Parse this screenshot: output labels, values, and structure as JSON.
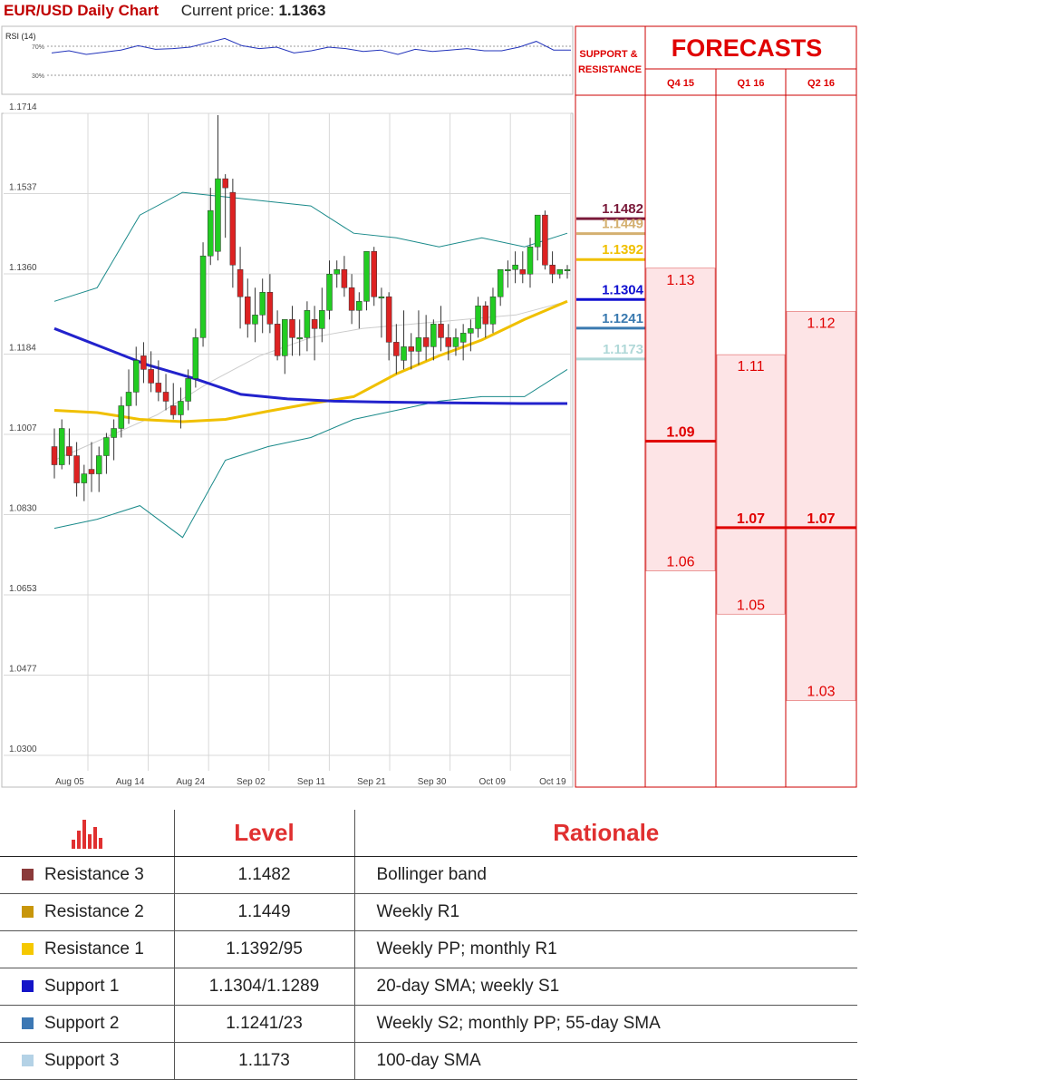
{
  "header": {
    "title": "EUR/USD Daily Chart",
    "price_label": "Current price:",
    "price_value": "1.1363"
  },
  "rsi": {
    "label": "RSI (14)",
    "upper": "70%",
    "lower": "30%"
  },
  "panel": {
    "sr_title": "SUPPORT & RESISTANCE",
    "fc_title": "FORECASTS"
  },
  "colors": {
    "resistance3": "#7a1a3a",
    "resistance2": "#d4b070",
    "resistance1": "#f0c000",
    "support1": "#1010d0",
    "support2": "#3a7ab0",
    "support3": "#b0d8d8",
    "forecast": "#e00000",
    "bull": "#22cc22",
    "bear": "#dd2222",
    "sma_blue": "#2222cc",
    "sma_yellow": "#f0c000",
    "bollinger": "#1a8a8a"
  },
  "sr_levels": [
    {
      "label": "1.1482",
      "value": 1.1482,
      "color": "#7a1a3a"
    },
    {
      "label": "1.1449",
      "value": 1.1449,
      "color": "#d4b070"
    },
    {
      "label": "1.1392",
      "value": 1.1392,
      "color": "#f0c000"
    },
    {
      "label": "1.1304",
      "value": 1.1304,
      "color": "#1010d0"
    },
    {
      "label": "1.1241",
      "value": 1.1241,
      "color": "#3a7ab0"
    },
    {
      "label": "1.1173",
      "value": 1.1173,
      "color": "#b0d8d8"
    }
  ],
  "chart_data": [
    {
      "type": "candlestick",
      "title": "EUR/USD Daily Chart",
      "y_ticks": [
        "1.1714",
        "1.1537",
        "1.1360",
        "1.1184",
        "1.1007",
        "1.0830",
        "1.0653",
        "1.0477",
        "1.0300"
      ],
      "ylim": [
        1.03,
        1.1714
      ],
      "x_ticks": [
        "Aug 05",
        "Aug 14",
        "Aug 24",
        "Sep 02",
        "Sep 11",
        "Sep 21",
        "Sep 30",
        "Oct 09",
        "Oct 19"
      ],
      "grid": true,
      "candles": [
        [
          1.098,
          1.102,
          1.091,
          1.094
        ],
        [
          1.094,
          1.104,
          1.093,
          1.102
        ],
        [
          1.098,
          1.102,
          1.094,
          1.096
        ],
        [
          1.096,
          1.099,
          1.087,
          1.09
        ],
        [
          1.09,
          1.094,
          1.086,
          1.092
        ],
        [
          1.093,
          1.099,
          1.088,
          1.092
        ],
        [
          1.092,
          1.098,
          1.088,
          1.096
        ],
        [
          1.096,
          1.101,
          1.092,
          1.1
        ],
        [
          1.1,
          1.104,
          1.095,
          1.102
        ],
        [
          1.102,
          1.109,
          1.1,
          1.107
        ],
        [
          1.107,
          1.115,
          1.103,
          1.11
        ],
        [
          1.11,
          1.12,
          1.107,
          1.117
        ],
        [
          1.118,
          1.121,
          1.112,
          1.115
        ],
        [
          1.115,
          1.119,
          1.11,
          1.112
        ],
        [
          1.112,
          1.117,
          1.108,
          1.11
        ],
        [
          1.11,
          1.114,
          1.106,
          1.108
        ],
        [
          1.107,
          1.112,
          1.104,
          1.105
        ],
        [
          1.105,
          1.111,
          1.102,
          1.108
        ],
        [
          1.108,
          1.115,
          1.106,
          1.113
        ],
        [
          1.113,
          1.124,
          1.111,
          1.122
        ],
        [
          1.122,
          1.143,
          1.12,
          1.14
        ],
        [
          1.14,
          1.155,
          1.138,
          1.15
        ],
        [
          1.141,
          1.171,
          1.139,
          1.157
        ],
        [
          1.157,
          1.158,
          1.144,
          1.155
        ],
        [
          1.154,
          1.157,
          1.133,
          1.138
        ],
        [
          1.137,
          1.142,
          1.124,
          1.131
        ],
        [
          1.131,
          1.135,
          1.122,
          1.125
        ],
        [
          1.125,
          1.133,
          1.121,
          1.127
        ],
        [
          1.127,
          1.135,
          1.123,
          1.132
        ],
        [
          1.132,
          1.136,
          1.123,
          1.125
        ],
        [
          1.125,
          1.128,
          1.117,
          1.118
        ],
        [
          1.118,
          1.125,
          1.114,
          1.126
        ],
        [
          1.126,
          1.129,
          1.118,
          1.122
        ],
        [
          1.122,
          1.126,
          1.118,
          1.122
        ],
        [
          1.122,
          1.13,
          1.119,
          1.128
        ],
        [
          1.126,
          1.129,
          1.117,
          1.124
        ],
        [
          1.124,
          1.133,
          1.121,
          1.128
        ],
        [
          1.128,
          1.139,
          1.126,
          1.136
        ],
        [
          1.136,
          1.139,
          1.133,
          1.137
        ],
        [
          1.137,
          1.14,
          1.131,
          1.133
        ],
        [
          1.133,
          1.136,
          1.125,
          1.128
        ],
        [
          1.128,
          1.132,
          1.124,
          1.13
        ],
        [
          1.13,
          1.141,
          1.128,
          1.141
        ],
        [
          1.141,
          1.142,
          1.129,
          1.131
        ],
        [
          1.131,
          1.133,
          1.122,
          1.131
        ],
        [
          1.131,
          1.132,
          1.117,
          1.121
        ],
        [
          1.121,
          1.125,
          1.114,
          1.118
        ],
        [
          1.117,
          1.128,
          1.115,
          1.12
        ],
        [
          1.12,
          1.123,
          1.115,
          1.119
        ],
        [
          1.119,
          1.128,
          1.116,
          1.122
        ],
        [
          1.122,
          1.127,
          1.117,
          1.12
        ],
        [
          1.12,
          1.126,
          1.117,
          1.125
        ],
        [
          1.125,
          1.129,
          1.119,
          1.122
        ],
        [
          1.122,
          1.125,
          1.117,
          1.12
        ],
        [
          1.12,
          1.124,
          1.118,
          1.122
        ],
        [
          1.121,
          1.125,
          1.117,
          1.123
        ],
        [
          1.123,
          1.126,
          1.119,
          1.124
        ],
        [
          1.124,
          1.131,
          1.122,
          1.129
        ],
        [
          1.129,
          1.13,
          1.122,
          1.125
        ],
        [
          1.125,
          1.133,
          1.123,
          1.131
        ],
        [
          1.131,
          1.137,
          1.129,
          1.137
        ],
        [
          1.137,
          1.139,
          1.133,
          1.137
        ],
        [
          1.137,
          1.141,
          1.134,
          1.138
        ],
        [
          1.137,
          1.141,
          1.134,
          1.136
        ],
        [
          1.136,
          1.144,
          1.133,
          1.142
        ],
        [
          1.142,
          1.149,
          1.139,
          1.149
        ],
        [
          1.149,
          1.15,
          1.137,
          1.138
        ],
        [
          1.138,
          1.141,
          1.134,
          1.136
        ],
        [
          1.136,
          1.137,
          1.135,
          1.137
        ],
        [
          1.137,
          1.138,
          1.135,
          1.137
        ]
      ],
      "sma_blue": [
        1.124,
        1.12,
        1.116,
        1.113,
        1.1095,
        1.1085,
        1.108,
        1.1078,
        1.1077,
        1.1076,
        1.1075,
        1.1075
      ],
      "sma_yellow": [
        1.106,
        1.1055,
        1.104,
        1.1035,
        1.104,
        1.1058,
        1.1075,
        1.109,
        1.114,
        1.118,
        1.1215,
        1.126,
        1.13
      ],
      "bb_upper": [
        1.13,
        1.133,
        1.149,
        1.154,
        1.153,
        1.152,
        1.151,
        1.145,
        1.144,
        1.142,
        1.144,
        1.142,
        1.145
      ],
      "bb_lower": [
        1.08,
        1.082,
        1.085,
        1.078,
        1.095,
        1.098,
        1.1,
        1.104,
        1.106,
        1.108,
        1.109,
        1.109,
        1.115
      ],
      "bb_middle": [
        1.095,
        1.1,
        1.105,
        1.112,
        1.118,
        1.122,
        1.124,
        1.125,
        1.126,
        1.127,
        1.13
      ]
    },
    {
      "type": "line",
      "title": "RSI (14)",
      "y_ticks": [
        "70%",
        "30%"
      ],
      "ylim": [
        0,
        100
      ],
      "values": [
        52,
        55,
        50,
        53,
        56,
        62,
        57,
        58,
        60,
        66,
        72,
        62,
        58,
        60,
        52,
        55,
        60,
        58,
        54,
        56,
        50,
        57,
        54,
        56,
        58,
        55,
        55,
        60,
        68,
        56,
        56
      ]
    },
    {
      "type": "bar",
      "title": "FORECASTS",
      "categories": [
        "Q4 15",
        "Q1 16",
        "Q2 16"
      ],
      "series": [
        {
          "values": [
            1.13,
            1.11,
            1.12
          ],
          "labels": [
            "1.13",
            "1.11",
            "1.12"
          ]
        },
        {
          "values": [
            1.09,
            1.07,
            1.07
          ],
          "labels": [
            "1.09",
            "1.07",
            "1.07"
          ]
        },
        {
          "values": [
            1.06,
            1.05,
            1.03
          ],
          "labels": [
            "1.06",
            "1.05",
            "1.03"
          ]
        }
      ]
    }
  ],
  "table": {
    "level_header": "Level",
    "rationale_header": "Rationale",
    "rows": [
      {
        "name": "Resistance 3",
        "level": "1.1482",
        "rationale": "Bollinger band",
        "color": "#8b3a3a"
      },
      {
        "name": "Resistance 2",
        "level": "1.1449",
        "rationale": "Weekly R1",
        "color": "#c8960a"
      },
      {
        "name": "Resistance 1",
        "level": "1.1392/95",
        "rationale": "Weekly PP; monthly R1",
        "color": "#f5c800"
      },
      {
        "name": "Support 1",
        "level": "1.1304/1.1289",
        "rationale": "20-day SMA; weekly S1",
        "color": "#1414c8"
      },
      {
        "name": "Support 2",
        "level": "1.1241/23",
        "rationale": "Weekly S2; monthly PP; 55-day SMA",
        "color": "#3c78b4"
      },
      {
        "name": "Support 3",
        "level": "1.1173",
        "rationale": "100-day SMA",
        "color": "#b4d2e6"
      }
    ]
  }
}
